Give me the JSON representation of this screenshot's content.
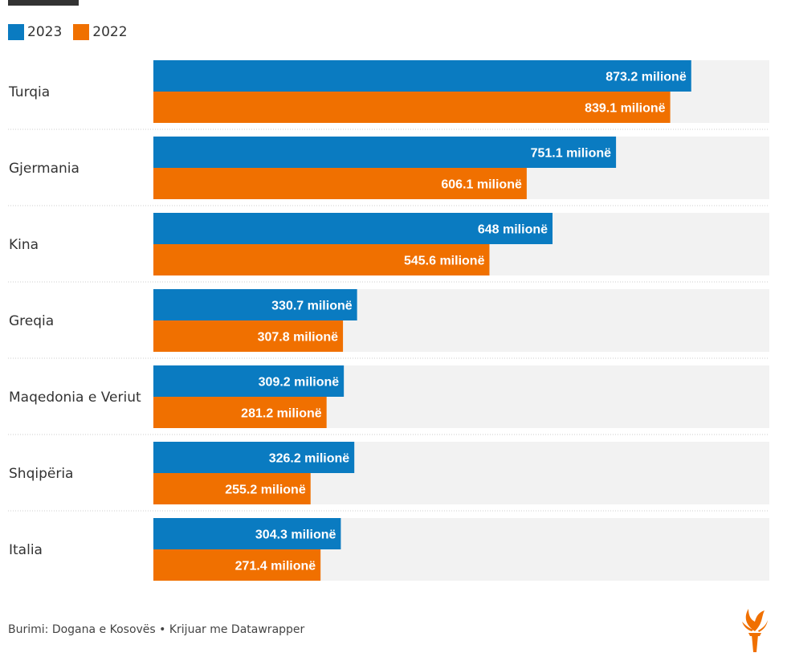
{
  "legend": {
    "items": [
      {
        "label": "2023",
        "color": "#0a7bc1"
      },
      {
        "label": "2022",
        "color": "#f07000"
      }
    ]
  },
  "chart_data": {
    "type": "bar",
    "orientation": "horizontal",
    "categories": [
      "Turqia",
      "Gjermania",
      "Kina",
      "Greqia",
      "Maqedonia e Veriut",
      "Shqipëria",
      "Italia"
    ],
    "series": [
      {
        "name": "2023",
        "color": "#0a7bc1",
        "values": [
          873.2,
          751.1,
          648,
          330.7,
          309.2,
          326.2,
          304.3
        ],
        "labels": [
          "873.2 milionë",
          "751.1 milionë",
          "648 milionë",
          "330.7 milionë",
          "309.2 milionë",
          "326.2 milionë",
          "304.3 milionë"
        ]
      },
      {
        "name": "2022",
        "color": "#f07000",
        "values": [
          839.1,
          606.1,
          545.6,
          307.8,
          281.2,
          255.2,
          271.4
        ],
        "labels": [
          "839.1 milionë",
          "606.1 milionë",
          "545.6 milionë",
          "307.8 milionë",
          "281.2 milionë",
          "255.2 milionë",
          "271.4 milionë"
        ]
      }
    ],
    "xlim": [
      0,
      1000
    ],
    "background_color": "#f2f2f2"
  },
  "footer": {
    "source": "Burimi: Dogana e Kosovës • Krijuar me Datawrapper"
  },
  "logo": {
    "icon": "torch-logo-icon",
    "color": "#f07000"
  }
}
